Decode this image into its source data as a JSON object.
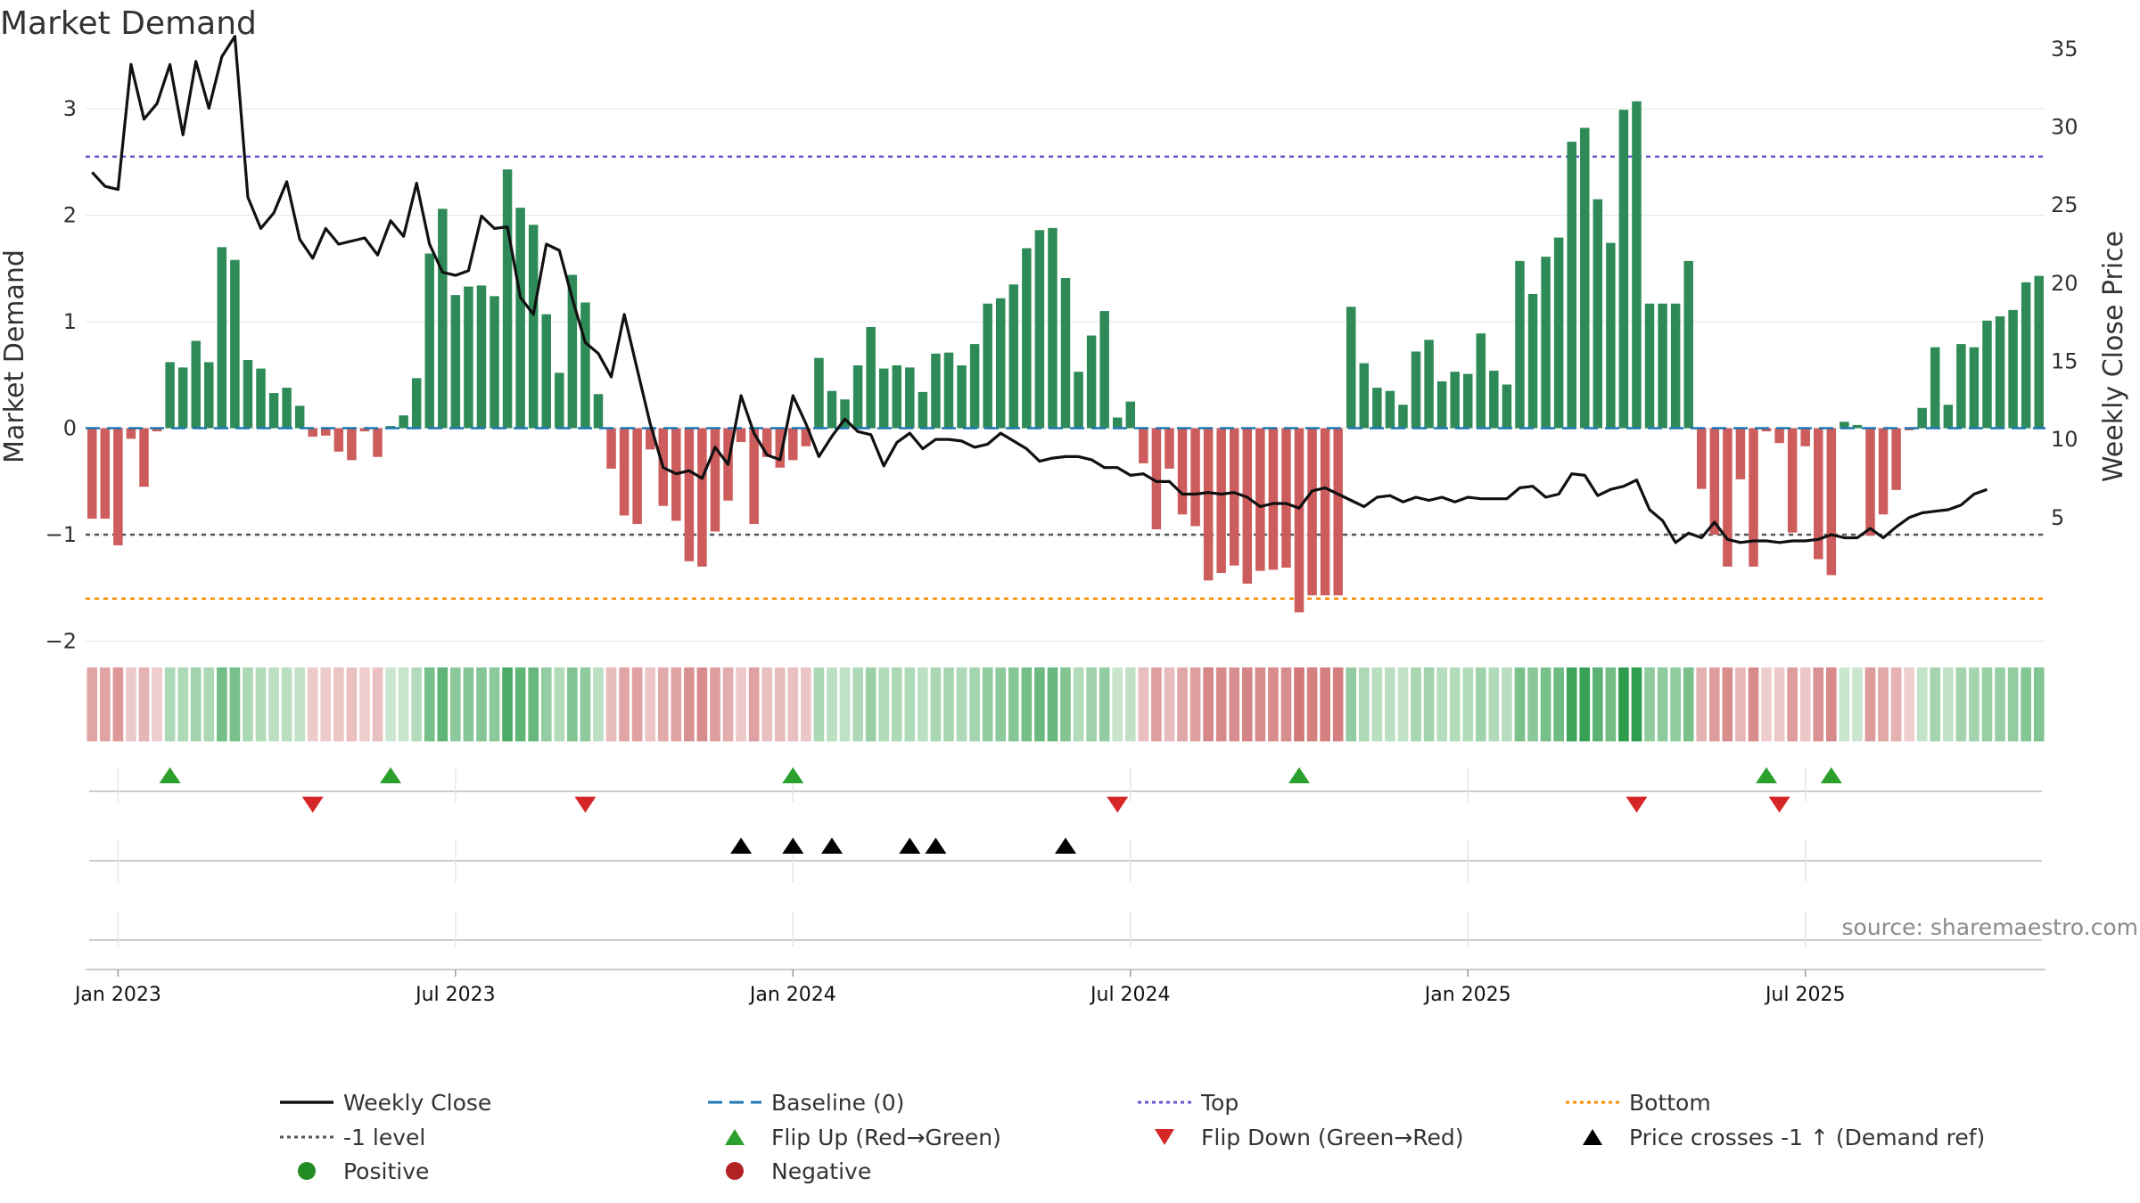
{
  "colors": {
    "positive": "#2e8b57",
    "negative": "#cd5c5c",
    "close": "#111111",
    "baseline": "#1f77b4",
    "top": "#6a5acd",
    "minus1": "#555555",
    "bottom": "#ff8c00",
    "flip_up": "#2ca02c",
    "flip_down": "#d62728",
    "cross": "#000000",
    "positive_dot": "#228b22",
    "negative_dot": "#b22222"
  },
  "chart_data": {
    "type": "bar",
    "title": "Market Demand",
    "ylabel_left": "Market Demand",
    "ylabel_right": "Weekly Close Price",
    "ylim_left": [
      -2.2,
      3.05
    ],
    "ylim_right": [
      1,
      37.5
    ],
    "left_ticks": [
      {
        "value": 3,
        "label": "3"
      },
      {
        "value": 2,
        "label": "2"
      },
      {
        "value": 1,
        "label": "1"
      },
      {
        "value": 0,
        "label": "0"
      },
      {
        "value": -1,
        "label": "−1"
      },
      {
        "value": -2,
        "label": "−2"
      }
    ],
    "right_ticks": [
      {
        "value": 35,
        "label": "35"
      },
      {
        "value": 30,
        "label": "30"
      },
      {
        "value": 25,
        "label": "25"
      },
      {
        "value": 20,
        "label": "20"
      },
      {
        "value": 15,
        "label": "15"
      },
      {
        "value": 10,
        "label": "10"
      },
      {
        "value": 5,
        "label": "5"
      }
    ],
    "date_ticks": [
      {
        "week": 2,
        "label": "Jan 2023"
      },
      {
        "week": 28,
        "label": "Jul 2023"
      },
      {
        "week": 54,
        "label": "Jan 2024"
      },
      {
        "week": 80,
        "label": "Jul 2024"
      },
      {
        "week": 106,
        "label": "Jan 2025"
      },
      {
        "week": 132,
        "label": "Jul 2025"
      }
    ],
    "levels": {
      "baseline": 0,
      "top": 2.55,
      "minus1": -1,
      "bottom": -1.6
    },
    "demand": [
      -0.85,
      -0.85,
      -1.1,
      -0.1,
      -0.55,
      -0.03,
      0.62,
      0.57,
      0.82,
      0.62,
      1.7,
      1.58,
      0.64,
      0.56,
      0.33,
      0.38,
      0.21,
      -0.08,
      -0.07,
      -0.22,
      -0.3,
      -0.03,
      -0.27,
      0.02,
      0.12,
      0.47,
      1.64,
      2.06,
      1.25,
      1.33,
      1.34,
      1.24,
      2.43,
      2.07,
      1.91,
      1.07,
      0.52,
      1.44,
      1.18,
      0.32,
      -0.38,
      -0.82,
      -0.9,
      -0.2,
      -0.73,
      -0.87,
      -1.25,
      -1.3,
      -0.97,
      -0.68,
      -0.13,
      -0.9,
      -0.27,
      -0.37,
      -0.3,
      -0.17,
      0.66,
      0.35,
      0.27,
      0.59,
      0.95,
      0.56,
      0.59,
      0.57,
      0.34,
      0.7,
      0.71,
      0.59,
      0.79,
      1.17,
      1.22,
      1.35,
      1.69,
      1.86,
      1.88,
      1.41,
      0.53,
      0.87,
      1.1,
      0.1,
      0.25,
      -0.33,
      -0.95,
      -0.38,
      -0.81,
      -0.92,
      -1.43,
      -1.36,
      -1.29,
      -1.46,
      -1.34,
      -1.33,
      -1.31,
      -1.73,
      -1.57,
      -1.57,
      -1.57,
      1.14,
      0.61,
      0.38,
      0.35,
      0.22,
      0.72,
      0.83,
      0.44,
      0.53,
      0.51,
      0.89,
      0.54,
      0.41,
      1.57,
      1.26,
      1.61,
      1.79,
      2.69,
      2.82,
      2.15,
      1.74,
      2.99,
      3.07,
      1.17,
      1.17,
      1.17,
      1.57,
      -0.57,
      -1.0,
      -1.3,
      -0.48,
      -1.3,
      -0.03,
      -0.14,
      -0.98,
      -0.17,
      -1.23,
      -1.38,
      0.06,
      0.03,
      -1.01,
      -0.81,
      -0.58,
      -0.02,
      0.19,
      0.76,
      0.22,
      0.79,
      0.76,
      1.01,
      1.05,
      1.11,
      1.37,
      1.43
    ],
    "close": [
      27.1,
      26.2,
      26.0,
      34.0,
      30.5,
      31.5,
      34.0,
      29.5,
      34.2,
      31.2,
      34.5,
      35.8,
      25.5,
      23.5,
      24.5,
      26.5,
      22.8,
      21.6,
      23.5,
      22.5,
      22.7,
      22.9,
      21.8,
      24.0,
      23.0,
      26.4,
      22.5,
      20.7,
      20.5,
      20.8,
      24.3,
      23.5,
      23.6,
      19.1,
      18.0,
      22.5,
      22.1,
      19.0,
      16.2,
      15.5,
      14.0,
      18.0,
      14.5,
      11.0,
      8.2,
      7.8,
      8.0,
      7.5,
      9.5,
      8.4,
      12.8,
      10.4,
      9.0,
      8.7,
      12.8,
      11.0,
      8.9,
      10.2,
      11.3,
      10.5,
      10.3,
      8.3,
      9.8,
      10.4,
      9.4,
      10.0,
      10.0,
      9.9,
      9.5,
      9.7,
      10.4,
      9.9,
      9.4,
      8.6,
      8.8,
      8.9,
      8.9,
      8.7,
      8.2,
      8.2,
      7.7,
      7.8,
      7.3,
      7.3,
      6.5,
      6.5,
      6.6,
      6.5,
      6.6,
      6.3,
      5.7,
      5.9,
      5.9,
      5.6,
      6.7,
      6.9,
      6.5,
      6.1,
      5.7,
      6.3,
      6.4,
      6.0,
      6.3,
      6.1,
      6.3,
      6.0,
      6.3,
      6.2,
      6.2,
      6.2,
      6.9,
      7.0,
      6.3,
      6.5,
      7.8,
      7.7,
      6.4,
      6.8,
      7.0,
      7.4,
      5.5,
      4.8,
      3.4,
      4.0,
      3.7,
      4.7,
      3.6,
      3.4,
      3.5,
      3.5,
      3.4,
      3.5,
      3.5,
      3.6,
      3.9,
      3.7,
      3.7,
      4.3,
      3.7,
      4.4,
      5.0,
      5.3,
      5.4,
      5.5,
      5.8,
      6.5,
      6.8
    ],
    "flip_up_weeks": [
      6,
      23,
      54,
      93,
      129,
      134
    ],
    "flip_down_weeks": [
      17,
      38,
      79,
      119,
      130
    ],
    "price_cross_weeks": [
      50,
      54,
      57,
      63,
      65,
      75
    ]
  },
  "legend": [
    {
      "label": "Weekly Close",
      "marker": "line",
      "color": "#111111"
    },
    {
      "label": "Baseline (0)",
      "marker": "dash",
      "color": "#1f77b4"
    },
    {
      "label": "Top",
      "marker": "dot",
      "color": "#6a5acd"
    },
    {
      "label": "Bottom",
      "marker": "dot",
      "color": "#ff8c00"
    },
    {
      "label": "-1 level",
      "marker": "dot",
      "color": "#555555"
    },
    {
      "label": "Flip Up (Red→Green)",
      "marker": "triangle-up",
      "color": "#2ca02c"
    },
    {
      "label": "Flip Down (Green→Red)",
      "marker": "triangle-down",
      "color": "#d62728"
    },
    {
      "label": "Price crosses -1 ↑ (Demand ref)",
      "marker": "triangle-up",
      "color": "#000000"
    },
    {
      "label": "Positive",
      "marker": "circle",
      "color": "#228b22"
    },
    {
      "label": "Negative",
      "marker": "circle",
      "color": "#b22222"
    }
  ],
  "source": "source: sharemaestro.com"
}
